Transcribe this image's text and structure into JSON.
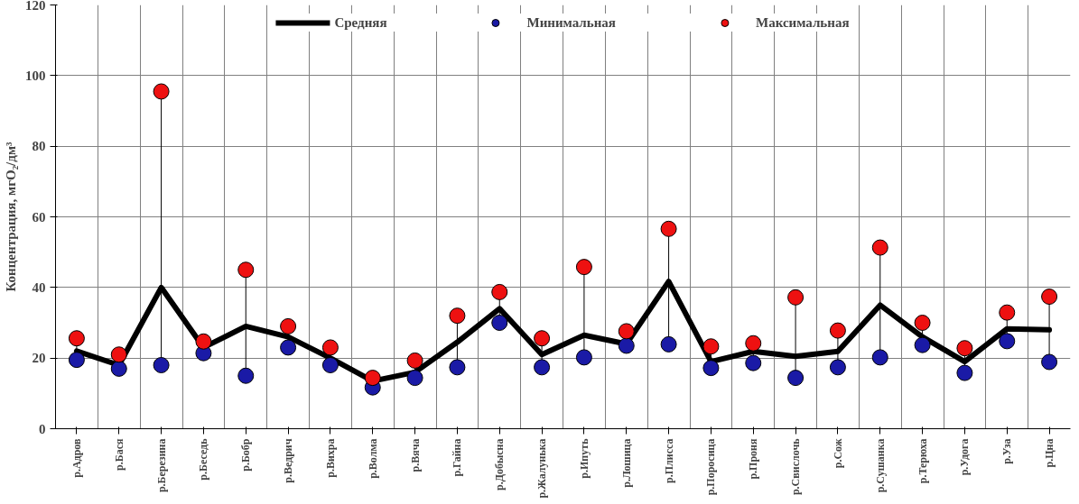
{
  "chart_data": {
    "type": "line",
    "ylabel": "Концентрация, мгO₂/дм³",
    "categories": [
      "р.Адров",
      "р.Бася",
      "р.Березина",
      "р.Беседь",
      "р.Бобр",
      "р.Ведрич",
      "р.Вихра",
      "р.Волма",
      "р.Вяча",
      "р.Гайна",
      "р.Добысна",
      "р.Жалунька",
      "р.Ипуть",
      "р.Лошица",
      "р.Плисса",
      "р.Поросица",
      "р.Проня",
      "р.Свислочь",
      "р.Сож",
      "р.Сушанка",
      "р.Терюха",
      "р.Удога",
      "р.Уза",
      "р.Цна"
    ],
    "series": [
      {
        "name": "Средняя",
        "marker": "none",
        "color": "#000000",
        "values": [
          22,
          18,
          40,
          23,
          29,
          26,
          20,
          13.5,
          16,
          24.5,
          34,
          21,
          26.5,
          24,
          41.7,
          19,
          21.9,
          20.5,
          21.9,
          35,
          26,
          19,
          28.3,
          28
        ]
      },
      {
        "name": "Минимальная",
        "type": "scatter",
        "color": "#1a1aa6",
        "values": [
          19.5,
          17,
          18,
          21.4,
          15,
          23,
          18,
          11.7,
          14.4,
          17.4,
          30,
          17.4,
          20.2,
          23.5,
          23.9,
          17.2,
          18.6,
          14.4,
          17.4,
          20.2,
          23.7,
          15.8,
          24.8,
          18.9
        ]
      },
      {
        "name": "Максимальная",
        "type": "scatter",
        "color": "#ee1111",
        "values": [
          25.6,
          21,
          95.5,
          24.7,
          45,
          29,
          23,
          14.4,
          19.3,
          32,
          38.7,
          25.6,
          45.8,
          27.6,
          56.6,
          23.3,
          24.2,
          37.2,
          27.8,
          51.3,
          30,
          22.8,
          32.9,
          37.4
        ]
      }
    ],
    "ylim": [
      0,
      120
    ],
    "yticks": [
      0,
      20,
      40,
      60,
      80,
      100,
      120
    ],
    "grid": true,
    "legend": "top",
    "marker": "circle"
  }
}
